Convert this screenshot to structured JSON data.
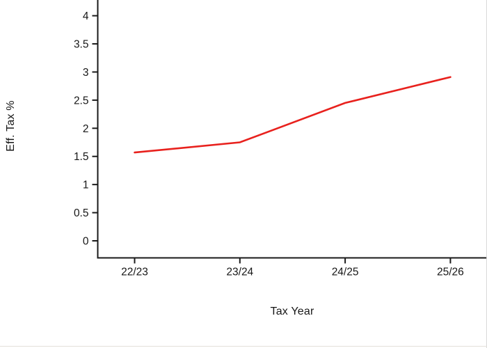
{
  "chart_data": {
    "type": "line",
    "title": "",
    "xlabel": "Tax Year",
    "ylabel": "Eff. Tax %",
    "categories": [
      "22/23",
      "23/24",
      "24/25",
      "25/26"
    ],
    "series": [
      {
        "values": [
          1.57,
          1.75,
          2.45,
          2.91
        ]
      }
    ],
    "y_tick_values": [
      0,
      0.5,
      1,
      1.5,
      2,
      2.5,
      3,
      3.5,
      4
    ],
    "y_tick_labels": [
      "0",
      "0.5",
      "1",
      "1.5",
      "2",
      "2.5",
      "3",
      "3.5",
      "4"
    ],
    "ylim": [
      0,
      4.3
    ],
    "grid": false,
    "legend": "none",
    "colors": {
      "line": "#e8211d",
      "axis": "#1a1a1a",
      "text": "#161616",
      "background": "#ffffff",
      "window_border_right": "#d9d9d9",
      "window_border_bottom": "#e3e0da"
    }
  }
}
